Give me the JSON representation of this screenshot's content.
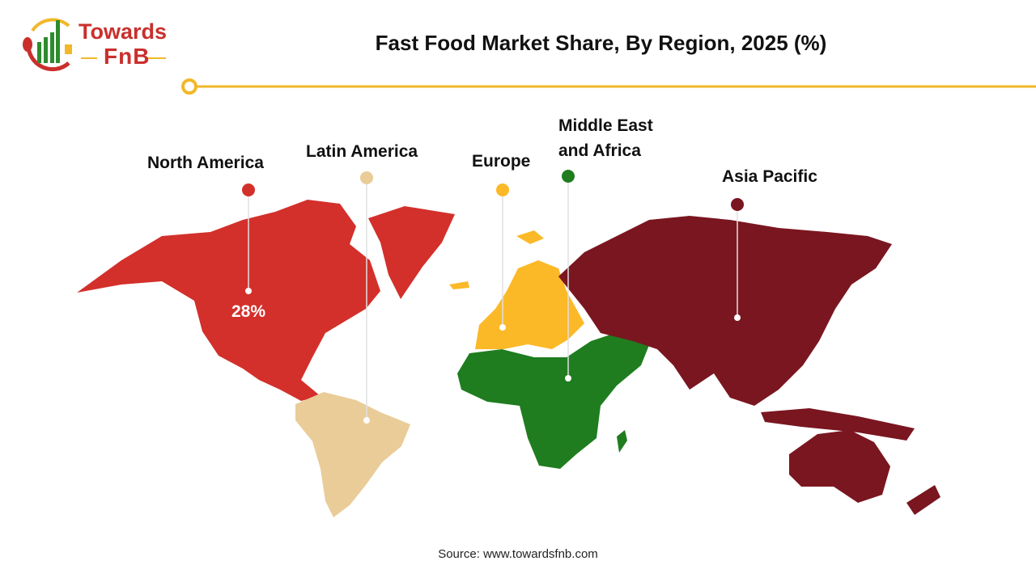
{
  "logo": {
    "line1": "Towards",
    "line2": "FnB"
  },
  "title": "Fast Food Market Share, By Region, 2025 (%)",
  "colors": {
    "accent": "#f2b829",
    "north_america": "#d3302b",
    "latin_america": "#e9cc98",
    "europe": "#fbb928",
    "middle_east_africa": "#1f7d1f",
    "asia_pacific": "#7a1620"
  },
  "regions": [
    {
      "name": "North America",
      "value": "28%"
    },
    {
      "name": "Latin America"
    },
    {
      "name": "Europe"
    },
    {
      "name": "Middle East",
      "name2": "and Africa"
    },
    {
      "name": "Asia Pacific"
    }
  ],
  "source": "Source: www.towardsfnb.com"
}
